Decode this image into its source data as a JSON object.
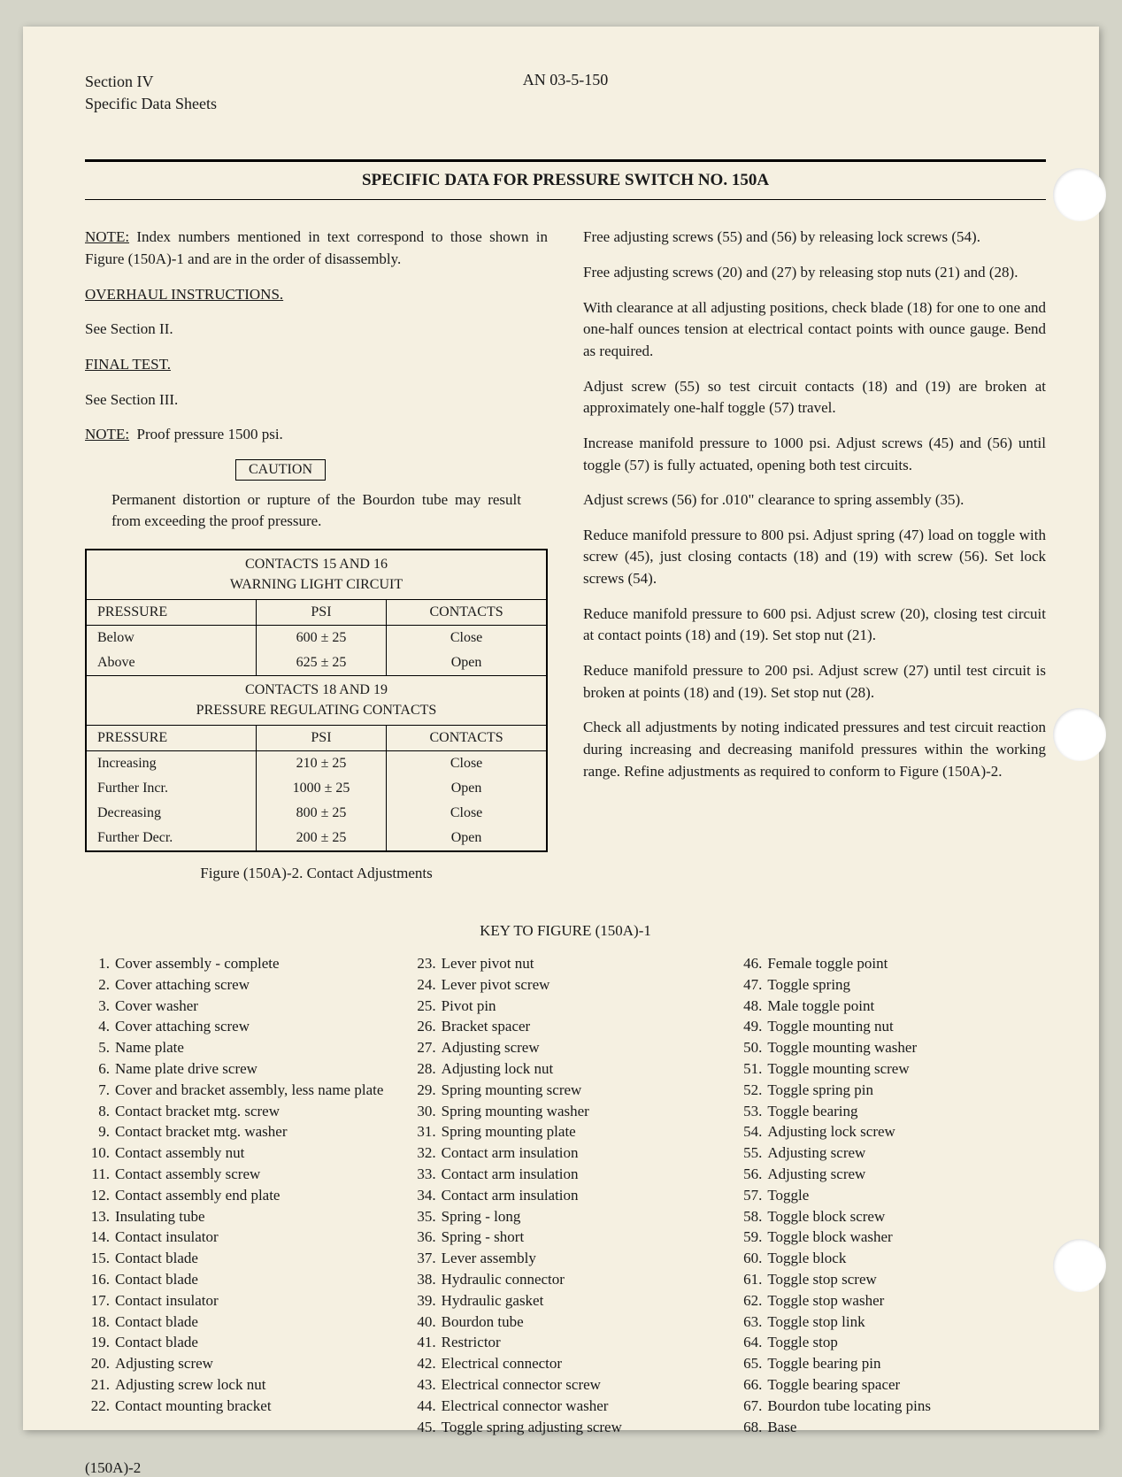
{
  "header": {
    "section": "Section IV",
    "subtitle": "Specific Data Sheets",
    "doc_number": "AN 03-5-150"
  },
  "title": "SPECIFIC DATA FOR PRESSURE SWITCH NO. 150A",
  "left_col": {
    "note1_label": "NOTE:",
    "note1_text": "Index numbers mentioned in text correspond to those shown in Figure (150A)-1 and are in the order of disassembly.",
    "overhaul_heading": "OVERHAUL INSTRUCTIONS.",
    "overhaul_text": "See Section II.",
    "final_heading": "FINAL TEST.",
    "final_text": "See Section III.",
    "note2_label": "NOTE:",
    "note2_text": "Proof pressure 1500 psi.",
    "caution_label": "CAUTION",
    "caution_text": "Permanent distortion or rupture of the Bourdon tube may result from exceeding the proof pressure."
  },
  "table1": {
    "title_line1": "CONTACTS 15 AND 16",
    "title_line2": "WARNING LIGHT CIRCUIT",
    "h1": "PRESSURE",
    "h2": "PSI",
    "h3": "CONTACTS",
    "r1c1": "Below",
    "r1c2": "600 ± 25",
    "r1c3": "Close",
    "r2c1": "Above",
    "r2c2": "625 ± 25",
    "r2c3": "Open"
  },
  "table2": {
    "title_line1": "CONTACTS 18 AND 19",
    "title_line2": "PRESSURE REGULATING CONTACTS",
    "h1": "PRESSURE",
    "h2": "PSI",
    "h3": "CONTACTS",
    "r1c1": "Increasing",
    "r1c2": "210 ± 25",
    "r1c3": "Close",
    "r2c1": "Further Incr.",
    "r2c2": "1000 ± 25",
    "r2c3": "Open",
    "r3c1": "Decreasing",
    "r3c2": "800 ± 25",
    "r3c3": "Close",
    "r4c1": "Further Decr.",
    "r4c2": "200 ± 25",
    "r4c3": "Open"
  },
  "figure_caption": "Figure (150A)-2. Contact Adjustments",
  "right_col": {
    "p1": "Free adjusting screws (55) and (56) by releasing lock screws (54).",
    "p2": "Free adjusting screws (20) and (27) by releasing stop nuts (21) and (28).",
    "p3": "With clearance at all adjusting positions, check blade (18) for one to one and one-half ounces tension at electrical contact points with ounce gauge. Bend as required.",
    "p4": "Adjust screw (55) so test circuit contacts (18) and (19) are broken at approximately one-half toggle (57) travel.",
    "p5": "Increase manifold pressure to 1000 psi. Adjust screws (45) and (56) until toggle (57) is fully actuated, opening both test circuits.",
    "p6": "Adjust screws (56) for .010\" clearance to spring assembly (35).",
    "p7": "Reduce manifold pressure to 800 psi. Adjust spring (47) load on toggle with screw (45), just closing contacts (18) and (19) with screw (56). Set lock screws (54).",
    "p8": "Reduce manifold pressure to 600 psi. Adjust screw (20), closing test circuit at contact points (18) and (19). Set stop nut (21).",
    "p9": "Reduce manifold pressure to 200 psi. Adjust screw (27) until test circuit is broken at points (18) and (19). Set stop nut (28).",
    "p10": "Check all adjustments by noting indicated pressures and test circuit reaction during increasing and decreasing manifold pressures within the working range. Refine adjustments as required to conform to Figure (150A)-2."
  },
  "key_title": "KEY TO FIGURE (150A)-1",
  "key": [
    {
      "n": "1.",
      "t": "Cover assembly - complete"
    },
    {
      "n": "2.",
      "t": "Cover attaching screw"
    },
    {
      "n": "3.",
      "t": "Cover washer"
    },
    {
      "n": "4.",
      "t": "Cover attaching screw"
    },
    {
      "n": "5.",
      "t": "Name plate"
    },
    {
      "n": "6.",
      "t": "Name plate drive screw"
    },
    {
      "n": "7.",
      "t": "Cover and bracket assembly, less name plate"
    },
    {
      "n": "8.",
      "t": "Contact bracket mtg. screw"
    },
    {
      "n": "9.",
      "t": "Contact bracket mtg. washer"
    },
    {
      "n": "10.",
      "t": "Contact assembly nut"
    },
    {
      "n": "11.",
      "t": "Contact assembly screw"
    },
    {
      "n": "12.",
      "t": "Contact assembly end plate"
    },
    {
      "n": "13.",
      "t": "Insulating tube"
    },
    {
      "n": "14.",
      "t": "Contact insulator"
    },
    {
      "n": "15.",
      "t": "Contact blade"
    },
    {
      "n": "16.",
      "t": "Contact blade"
    },
    {
      "n": "17.",
      "t": "Contact insulator"
    },
    {
      "n": "18.",
      "t": "Contact blade"
    },
    {
      "n": "19.",
      "t": "Contact blade"
    },
    {
      "n": "20.",
      "t": "Adjusting screw"
    },
    {
      "n": "21.",
      "t": "Adjusting screw lock nut"
    },
    {
      "n": "22.",
      "t": "Contact mounting bracket"
    },
    {
      "n": "23.",
      "t": "Lever pivot nut"
    },
    {
      "n": "24.",
      "t": "Lever pivot screw"
    },
    {
      "n": "25.",
      "t": "Pivot pin"
    },
    {
      "n": "26.",
      "t": "Bracket spacer"
    },
    {
      "n": "27.",
      "t": "Adjusting screw"
    },
    {
      "n": "28.",
      "t": "Adjusting lock nut"
    },
    {
      "n": "29.",
      "t": "Spring mounting screw"
    },
    {
      "n": "30.",
      "t": "Spring mounting washer"
    },
    {
      "n": "31.",
      "t": "Spring mounting plate"
    },
    {
      "n": "32.",
      "t": "Contact arm insulation"
    },
    {
      "n": "33.",
      "t": "Contact arm insulation"
    },
    {
      "n": "34.",
      "t": "Contact arm insulation"
    },
    {
      "n": "35.",
      "t": "Spring - long"
    },
    {
      "n": "36.",
      "t": "Spring - short"
    },
    {
      "n": "37.",
      "t": "Lever assembly"
    },
    {
      "n": "38.",
      "t": "Hydraulic connector"
    },
    {
      "n": "39.",
      "t": "Hydraulic gasket"
    },
    {
      "n": "40.",
      "t": "Bourdon tube"
    },
    {
      "n": "41.",
      "t": "Restrictor"
    },
    {
      "n": "42.",
      "t": "Electrical connector"
    },
    {
      "n": "43.",
      "t": "Electrical connector screw"
    },
    {
      "n": "44.",
      "t": "Electrical connector washer"
    },
    {
      "n": "45.",
      "t": "Toggle spring adjusting screw"
    },
    {
      "n": "46.",
      "t": "Female toggle point"
    },
    {
      "n": "47.",
      "t": "Toggle spring"
    },
    {
      "n": "48.",
      "t": "Male toggle point"
    },
    {
      "n": "49.",
      "t": "Toggle mounting nut"
    },
    {
      "n": "50.",
      "t": "Toggle mounting washer"
    },
    {
      "n": "51.",
      "t": "Toggle mounting screw"
    },
    {
      "n": "52.",
      "t": "Toggle spring pin"
    },
    {
      "n": "53.",
      "t": "Toggle bearing"
    },
    {
      "n": "54.",
      "t": "Adjusting lock screw"
    },
    {
      "n": "55.",
      "t": "Adjusting screw"
    },
    {
      "n": "56.",
      "t": "Adjusting screw"
    },
    {
      "n": "57.",
      "t": "Toggle"
    },
    {
      "n": "58.",
      "t": "Toggle block screw"
    },
    {
      "n": "59.",
      "t": "Toggle block washer"
    },
    {
      "n": "60.",
      "t": "Toggle block"
    },
    {
      "n": "61.",
      "t": "Toggle stop screw"
    },
    {
      "n": "62.",
      "t": "Toggle stop washer"
    },
    {
      "n": "63.",
      "t": "Toggle stop link"
    },
    {
      "n": "64.",
      "t": "Toggle stop"
    },
    {
      "n": "65.",
      "t": "Toggle bearing pin"
    },
    {
      "n": "66.",
      "t": "Toggle bearing spacer"
    },
    {
      "n": "67.",
      "t": "Bourdon tube locating pins"
    },
    {
      "n": "68.",
      "t": "Base"
    }
  ],
  "footer": "(150A)-2"
}
